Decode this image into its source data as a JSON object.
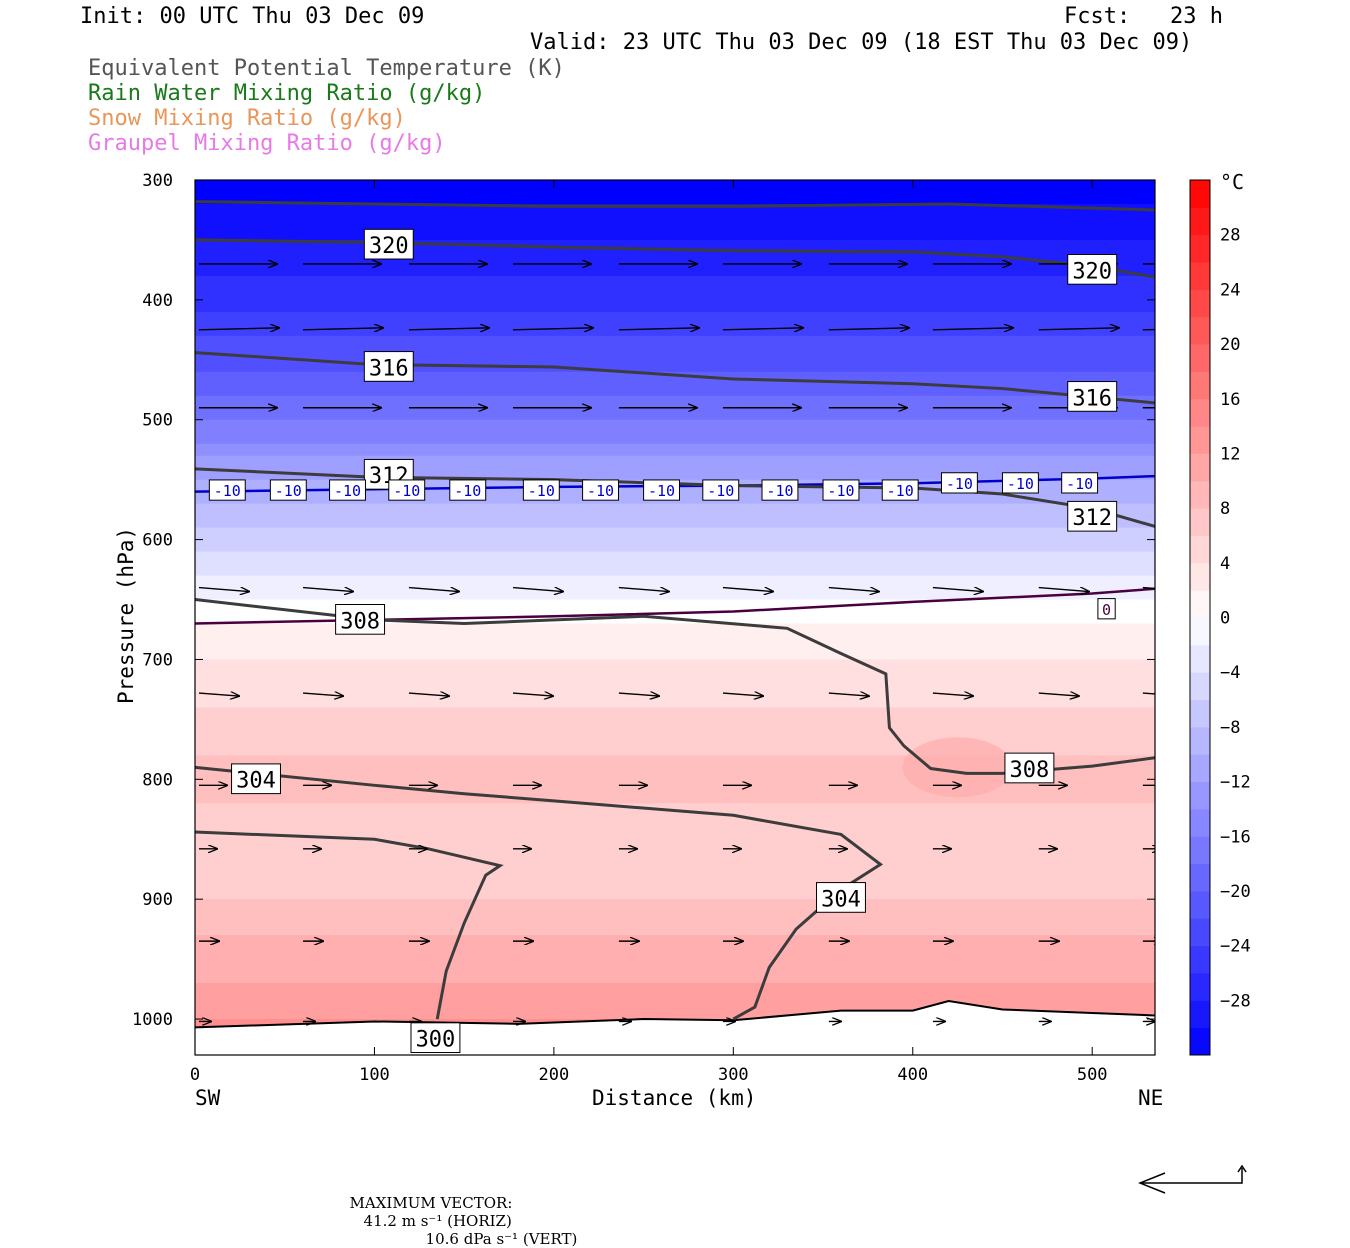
{
  "header": {
    "init": "Init: 00 UTC Thu 03 Dec 09",
    "fcst": "Fcst:   23 h",
    "valid": "Valid: 23 UTC Thu 03 Dec 09 (18 EST Thu 03 Dec 09)",
    "fields": [
      {
        "label": "Equivalent Potential Temperature (K)",
        "color": "#555555"
      },
      {
        "label": "Rain Water Mixing Ratio (g/kg)",
        "color": "#1a7a1a"
      },
      {
        "label": "Snow Mixing Ratio (g/kg)",
        "color": "#e8965a"
      },
      {
        "label": "Graupel Mixing Ratio (g/kg)",
        "color": "#e87ae8"
      }
    ]
  },
  "chart_data": {
    "type": "heatmap",
    "description_shading": "Temperature cross-section",
    "xlabel": "Distance (km)",
    "ylabel": "Pressure (hPa)",
    "xlim": [
      0,
      535
    ],
    "ylim": [
      1030,
      300
    ],
    "x_ticks": [
      0,
      100,
      200,
      300,
      400,
      500
    ],
    "y_ticks": [
      300,
      400,
      500,
      600,
      700,
      800,
      900,
      1000
    ],
    "x_endpoints": {
      "left": "SW",
      "right": "NE"
    },
    "colorbar": {
      "unit": "°C",
      "levels": [
        -32,
        -30,
        -28,
        -26,
        -24,
        -22,
        -20,
        -18,
        -16,
        -14,
        -12,
        -10,
        -8,
        -6,
        -4,
        -2,
        0,
        2,
        4,
        6,
        8,
        10,
        12,
        14,
        16,
        18,
        20,
        22,
        24,
        26,
        28,
        30,
        32
      ],
      "tick_labels": [
        28,
        24,
        20,
        16,
        12,
        8,
        4,
        0,
        -4,
        -8,
        -12,
        -16,
        -20,
        -24,
        -28
      ],
      "cold_color": "#0000ff",
      "warm_color": "#ff0000",
      "neutral_color": "#ffffff"
    },
    "temperature_profile": [
      {
        "p": 300,
        "t": -32
      },
      {
        "p": 400,
        "t": -26
      },
      {
        "p": 500,
        "t": -17
      },
      {
        "p": 560,
        "t": -10
      },
      {
        "p": 600,
        "t": -6
      },
      {
        "p": 650,
        "t": -1
      },
      {
        "p": 670,
        "t": 1
      },
      {
        "p": 700,
        "t": 3
      },
      {
        "p": 800,
        "t": 8
      },
      {
        "p": 860,
        "t": 5
      },
      {
        "p": 900,
        "t": 7
      },
      {
        "p": 1000,
        "t": 13
      }
    ],
    "theta_e_contours": [
      {
        "label": "320",
        "points": [
          [
            0,
            350
          ],
          [
            100,
            352
          ],
          [
            200,
            356
          ],
          [
            300,
            359
          ],
          [
            400,
            360
          ],
          [
            450,
            364
          ],
          [
            500,
            372
          ],
          [
            535,
            381
          ]
        ],
        "label_at": [
          108,
          354
        ]
      },
      {
        "label": "316",
        "points": [
          [
            0,
            444
          ],
          [
            100,
            454
          ],
          [
            200,
            456
          ],
          [
            300,
            466
          ],
          [
            400,
            470
          ],
          [
            450,
            474
          ],
          [
            500,
            481
          ],
          [
            535,
            486
          ]
        ],
        "label_at": [
          108,
          456
        ]
      },
      {
        "label": "312",
        "points": [
          [
            0,
            541
          ],
          [
            100,
            548
          ],
          [
            200,
            550
          ],
          [
            300,
            555
          ],
          [
            400,
            557
          ],
          [
            450,
            562
          ],
          [
            500,
            574
          ],
          [
            535,
            589
          ]
        ],
        "label_at": [
          108,
          546
        ]
      },
      {
        "label": "308",
        "points": [
          [
            0,
            650
          ],
          [
            100,
            667
          ],
          [
            150,
            670
          ],
          [
            250,
            664
          ],
          [
            330,
            674
          ],
          [
            360,
            695
          ],
          [
            385,
            712
          ],
          [
            387,
            757
          ],
          [
            395,
            772
          ],
          [
            410,
            791
          ],
          [
            430,
            795
          ],
          [
            450,
            795
          ],
          [
            500,
            789
          ],
          [
            535,
            782
          ]
        ],
        "label_at": [
          92,
          667
        ]
      },
      {
        "label": "304",
        "points": [
          [
            0,
            790
          ],
          [
            100,
            805
          ],
          [
            150,
            812
          ],
          [
            200,
            818
          ],
          [
            300,
            830
          ],
          [
            360,
            846
          ],
          [
            382,
            871
          ],
          [
            360,
            892
          ],
          [
            335,
            925
          ],
          [
            320,
            957
          ],
          [
            312,
            990
          ],
          [
            300,
            1000
          ]
        ],
        "label_at": [
          34,
          800
        ]
      },
      {
        "label": "300",
        "points": [
          [
            0,
            844
          ],
          [
            100,
            850
          ],
          [
            130,
            858
          ],
          [
            170,
            872
          ],
          [
            162,
            880
          ],
          [
            150,
            920
          ],
          [
            140,
            960
          ],
          [
            135,
            1000
          ]
        ],
        "label_at": [
          134,
          1016
        ]
      }
    ],
    "isotherm_labels": [
      {
        "label": "-10",
        "p": 559,
        "color": "#0000cc"
      },
      {
        "label": "0",
        "p": 658,
        "color": "#4a0040"
      }
    ],
    "wind_vectors": {
      "max_horiz": "41.2 m s⁻¹ (HORIZ)",
      "max_vert": "10.6 dPa s⁻¹ (VERT)",
      "max_label": "MAXIMUM VECTOR:"
    }
  }
}
